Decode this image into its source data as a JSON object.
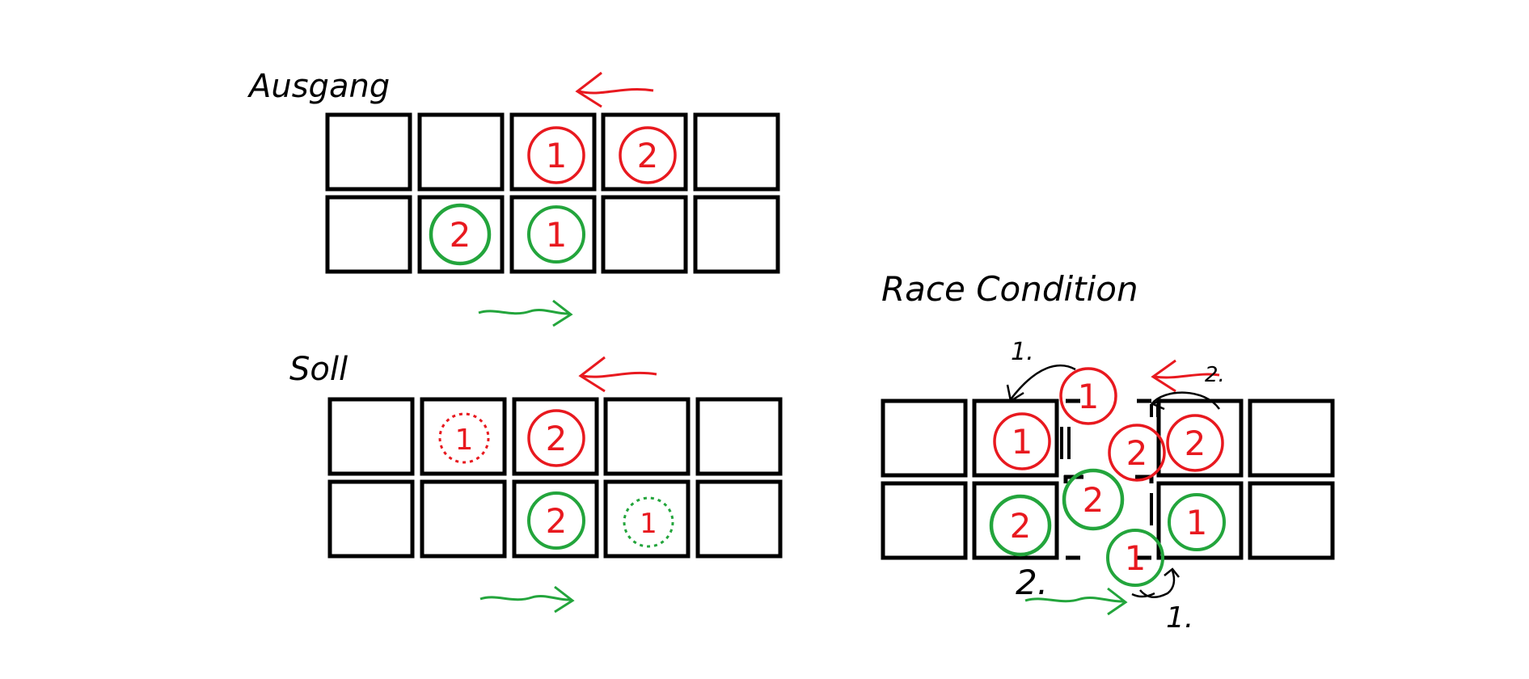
{
  "panels": {
    "ausgang": {
      "title": "Ausgang"
    },
    "soll": {
      "title": "Soll"
    },
    "race": {
      "title": "Race Condition",
      "step_first": "1.",
      "step_second": "2."
    }
  },
  "tokens": {
    "one": "1",
    "two": "2"
  },
  "colors": {
    "red": "#e8191f",
    "green": "#23a53c",
    "ink": "#000000"
  }
}
